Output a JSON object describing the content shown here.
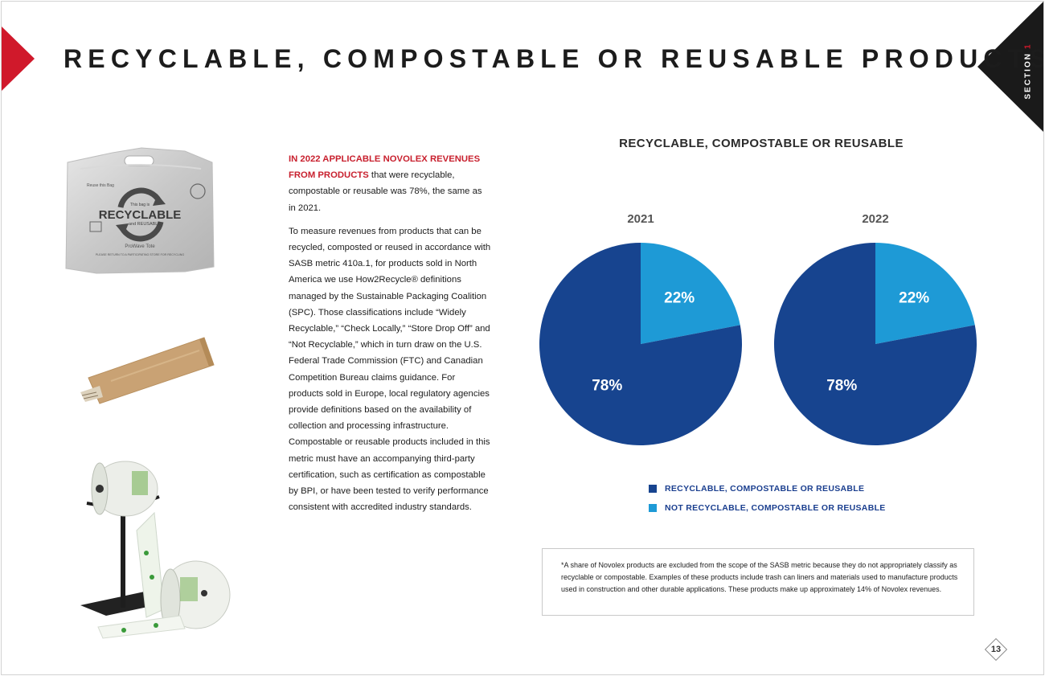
{
  "header": {
    "title": "RECYCLABLE, COMPOSTABLE OR REUSABLE PRODUCTS",
    "section_word": "SECTION",
    "section_number": "1"
  },
  "body": {
    "lead_red": "IN 2022 APPLICABLE NOVOLEX REVENUES FROM PRODUCTS",
    "lead_rest": " that were recyclable, compostable or reusable was 78%, the same as in 2021.",
    "paragraph2": "To measure revenues from products that can be recycled, composted or reused in accordance with SASB metric 410a.1, for products sold in North America we use How2Recycle® definitions managed by the Sustainable Packaging Coalition (SPC). Those classifications include “Widely Recyclable,” “Check Locally,” “Store Drop Off” and “Not Recyclable,” which in turn draw on the U.S. Federal Trade Commission (FTC) and Canadian Competition Bureau claims guidance. For products sold in Europe, local regulatory agencies provide definitions based on the availability of collection and processing infrastructure. Compostable or reusable products included in this metric must have an accompanying third-party certification, such as certification as compostable by BPI, or have been tested to verify performance consistent with accredited industry standards."
  },
  "products": {
    "bag_text": {
      "center": "RECYCLABLE",
      "small_top": "This bag is",
      "small_bottom": "and REUSABLE",
      "left": "Reuse this Bag",
      "brand": "ProWave Tote",
      "footer": "PLEASE RETURN TO A PARTICIPATING STORE FOR RECYCLING"
    }
  },
  "chart_data": {
    "type": "pie",
    "title": "RECYCLABLE, COMPOSTABLE OR REUSABLE",
    "pies": [
      {
        "label": "2021",
        "values": [
          78,
          22
        ],
        "labels": [
          "78%",
          "22%"
        ]
      },
      {
        "label": "2022",
        "values": [
          78,
          22
        ],
        "labels": [
          "78%",
          "22%"
        ]
      }
    ],
    "series": [
      {
        "name": "RECYCLABLE, COMPOSTABLE OR REUSABLE",
        "color": "#17448f"
      },
      {
        "name": "NOT RECYCLABLE, COMPOSTABLE OR REUSABLE",
        "color": "#1e9ad6"
      }
    ],
    "legend_position": "bottom"
  },
  "footnote": "*A share of Novolex products are excluded from the scope of the SASB metric because they do not appropriately classify as recyclable or compostable. Examples of these products include trash can liners and materials used to manufacture products used in construction and other durable applications. These products make up approximately 14% of Novolex revenues.",
  "page_number": "13",
  "colors": {
    "accent_red": "#d0192b",
    "dark_blue": "#17448f",
    "light_blue": "#1e9ad6",
    "corner_black": "#1a1a1a"
  }
}
